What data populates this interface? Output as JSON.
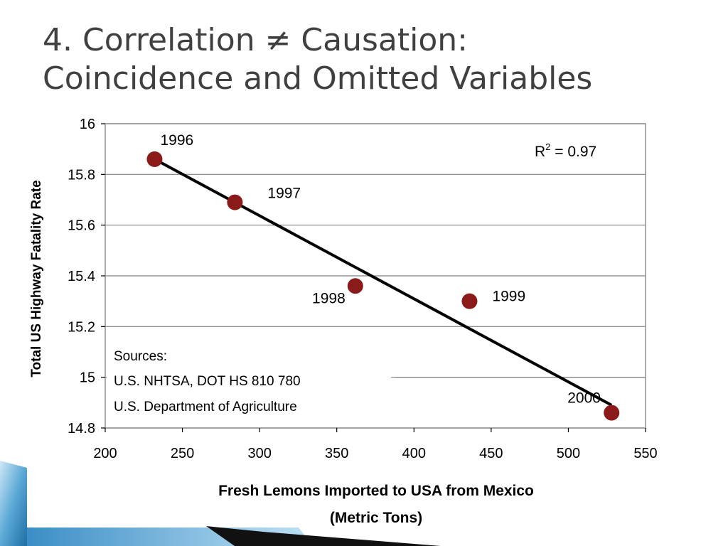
{
  "slide": {
    "title_line1": "4. Correlation ≠ Causation:",
    "title_line2": "Coincidence and Omitted Variables"
  },
  "chart_data": {
    "type": "scatter",
    "ylabel": "Total US Highway Fatality Rate",
    "xlabel_line1": "Fresh Lemons Imported to USA from Mexico",
    "xlabel_line2": "(Metric Tons)",
    "xlim": [
      200,
      550
    ],
    "ylim": [
      14.8,
      16
    ],
    "x_ticks": [
      "200",
      "250",
      "300",
      "350",
      "400",
      "450",
      "500",
      "550"
    ],
    "y_ticks": [
      "14.8",
      "15",
      "15.2",
      "15.4",
      "15.6",
      "15.8",
      "16"
    ],
    "points": [
      {
        "label": "1996",
        "x": 232,
        "y": 15.86
      },
      {
        "label": "1997",
        "x": 284,
        "y": 15.69
      },
      {
        "label": "1998",
        "x": 362,
        "y": 15.36
      },
      {
        "label": "1999",
        "x": 436,
        "y": 15.3
      },
      {
        "label": "2000",
        "x": 528,
        "y": 14.86
      }
    ],
    "trendline": {
      "x": [
        232,
        528
      ],
      "y": [
        15.86,
        14.89
      ]
    },
    "r2_prefix": "R",
    "r2_sup": "2",
    "r2_value": " = 0.97",
    "sources": [
      "Sources:",
      "U.S. NHTSA, DOT HS 810 780",
      "U.S. Department of Agriculture"
    ],
    "grid": true,
    "point_color": "#8b1a1a",
    "grid_color": "#808080"
  },
  "colors": {
    "title": "#404040",
    "accent_blue": "#2f7fb5",
    "accent_light": "#a9d4ee"
  }
}
